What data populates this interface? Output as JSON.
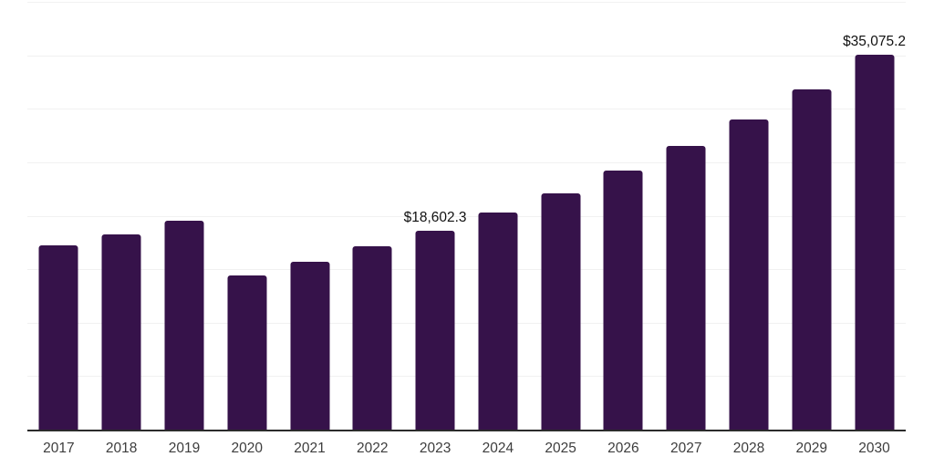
{
  "chart_data": {
    "type": "bar",
    "title": "",
    "xlabel": "",
    "ylabel": "",
    "categories": [
      "2017",
      "2018",
      "2019",
      "2020",
      "2021",
      "2022",
      "2023",
      "2024",
      "2025",
      "2026",
      "2027",
      "2028",
      "2029",
      "2030"
    ],
    "values": [
      17200,
      18250,
      19500,
      14400,
      15700,
      17150,
      18602.3,
      20300,
      22100,
      24200,
      26500,
      29000,
      31800,
      35075.2
    ],
    "data_labels": [
      {
        "category": "2023",
        "text": "$18,602.3"
      },
      {
        "category": "2030",
        "text": "$35,075.2"
      }
    ],
    "ylim": [
      0,
      40000
    ],
    "gridline_step": 5000,
    "y_axis_labels_visible": false,
    "grid": "horizontal",
    "legend": "none",
    "colors": {
      "bar": "#36124A",
      "gridline": "#F1F1F1",
      "axis_line": "#2B2B2B",
      "data_label": "#111111",
      "tick_label": "#3D3D3D",
      "background": "#FFFFFF"
    }
  }
}
